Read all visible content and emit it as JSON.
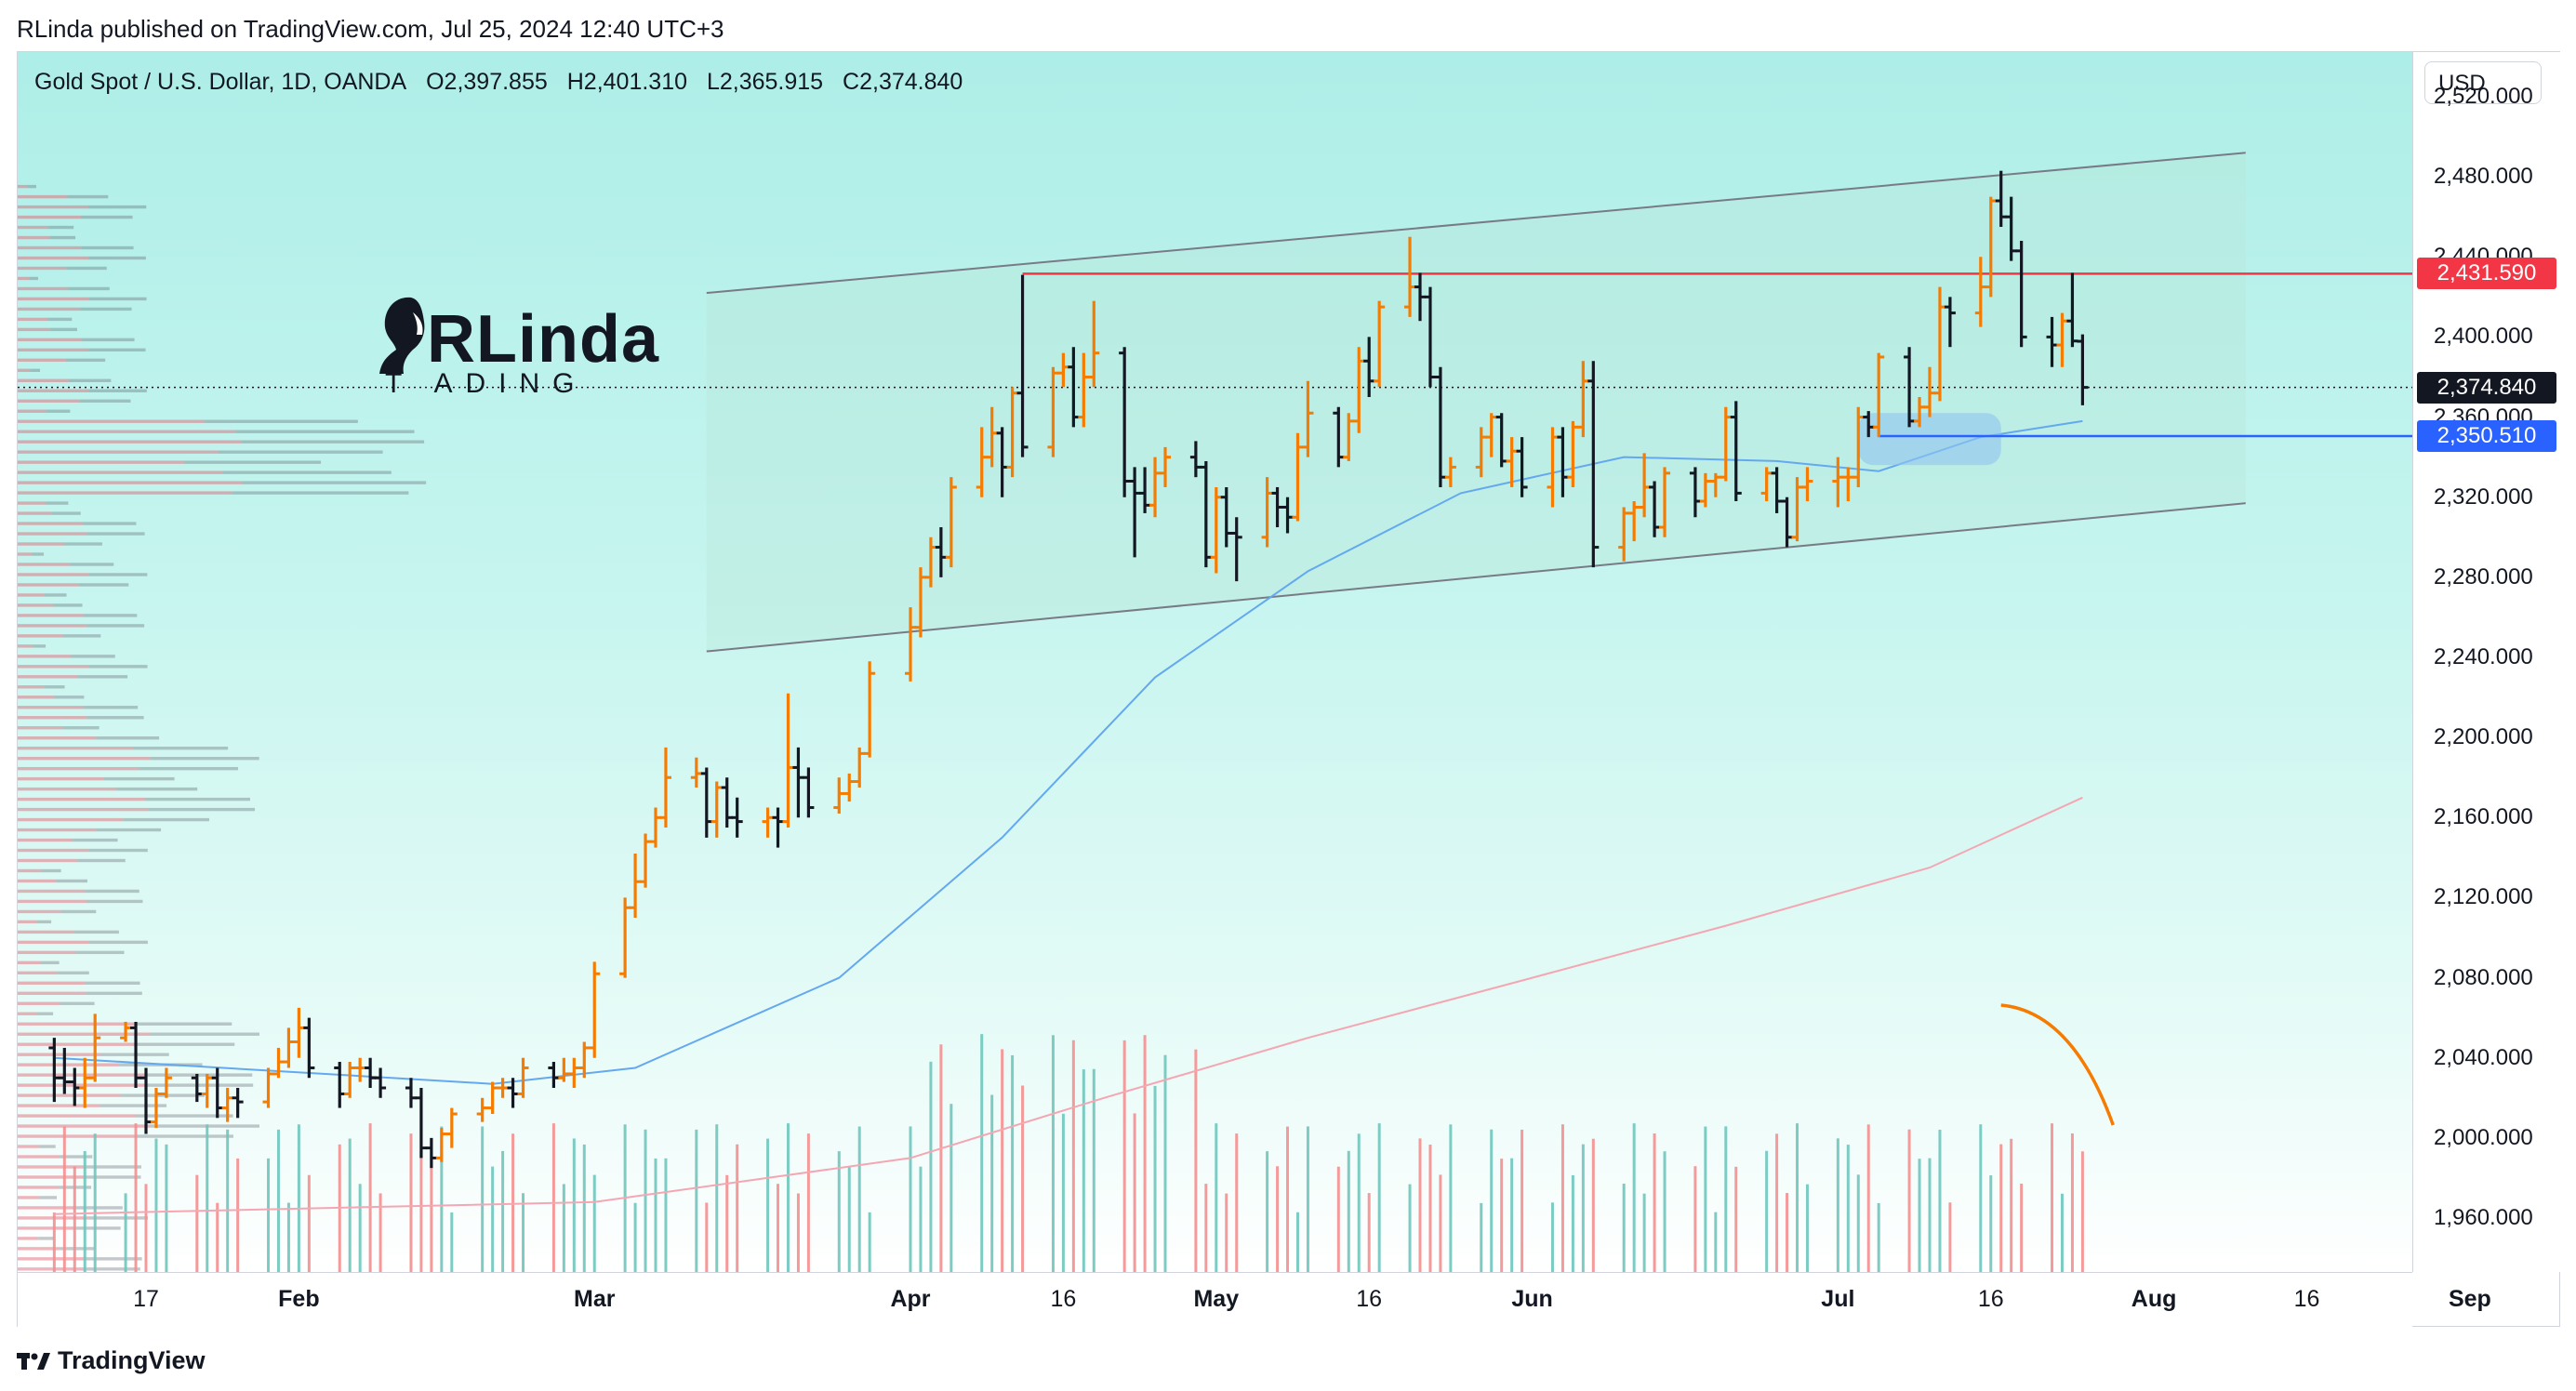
{
  "header": {
    "caption": "RLinda published on TradingView.com, Jul 25, 2024 12:40 UTC+3"
  },
  "legend": {
    "symbol": "Gold Spot / U.S. Dollar, 1D, OANDA",
    "open": "O2,397.855",
    "high": "H2,401.310",
    "low": "L2,365.915",
    "close": "C2,374.840"
  },
  "watermark": {
    "name": "RLinda",
    "sub": "TRADING",
    "sub_shown": "T  ADING"
  },
  "price_axis": {
    "currency": "USD",
    "ticks": [
      "2,520.000",
      "2,480.000",
      "2,440.000",
      "2,400.000",
      "2,360.000",
      "2,320.000",
      "2,280.000",
      "2,240.000",
      "2,200.000",
      "2,160.000",
      "2,120.000",
      "2,080.000",
      "2,040.000",
      "2,000.000",
      "1,960.000"
    ],
    "tags": [
      {
        "label": "2,431.590",
        "value": 2431.59,
        "color": "#f23645"
      },
      {
        "label": "2,374.840",
        "value": 2374.84,
        "color": "#131722"
      },
      {
        "label": "2,350.510",
        "value": 2350.51,
        "color": "#2962ff"
      }
    ]
  },
  "time_axis": {
    "ticks": [
      {
        "label": "17",
        "month": false
      },
      {
        "label": "Feb",
        "month": true
      },
      {
        "label": "Mar",
        "month": true
      },
      {
        "label": "Apr",
        "month": true
      },
      {
        "label": "16",
        "month": false
      },
      {
        "label": "May",
        "month": true
      },
      {
        "label": "16",
        "month": false
      },
      {
        "label": "Jun",
        "month": true
      },
      {
        "label": "Jul",
        "month": true
      },
      {
        "label": "16",
        "month": false
      },
      {
        "label": "Aug",
        "month": true
      },
      {
        "label": "16",
        "month": false
      },
      {
        "label": "Sep",
        "month": true
      }
    ]
  },
  "footer": {
    "brand": "TradingView"
  },
  "colors": {
    "up": "#f57c00",
    "down": "#131722",
    "ma_fast": "#64a8f0",
    "ma_slow": "#f4a7b3",
    "vol_up": "#6fc7bd",
    "vol_down": "#f48f8f",
    "resistance": "#f23645",
    "support": "#2962ff"
  },
  "chart_data": {
    "type": "ohlc",
    "symbol": "XAUUSD",
    "timeframe": "1D",
    "ylim": [
      1920,
      2560
    ],
    "x_range": [
      "2024-01-08",
      "2024-09-05"
    ],
    "last_close": 2374.84,
    "levels": [
      {
        "label": "2,431.590",
        "value": 2431.59,
        "color": "red"
      },
      {
        "label": "2,350.510",
        "value": 2350.51,
        "color": "blue"
      }
    ],
    "channel": {
      "upper": [
        [
          "2024-03-12",
          2422
        ],
        [
          "2024-08-10",
          2492
        ]
      ],
      "lower": [
        [
          "2024-03-12",
          2243
        ],
        [
          "2024-08-10",
          2317
        ]
      ]
    },
    "ma_fast": [
      [
        "2024-01-08",
        2040
      ],
      [
        "2024-02-20",
        2027
      ],
      [
        "2024-03-05",
        2035
      ],
      [
        "2024-03-25",
        2080
      ],
      [
        "2024-04-10",
        2150
      ],
      [
        "2024-04-25",
        2230
      ],
      [
        "2024-05-10",
        2283
      ],
      [
        "2024-05-25",
        2322
      ],
      [
        "2024-06-10",
        2340
      ],
      [
        "2024-06-25",
        2338
      ],
      [
        "2024-07-05",
        2333
      ],
      [
        "2024-07-15",
        2350
      ],
      [
        "2024-07-25",
        2358
      ]
    ],
    "ma_slow": [
      [
        "2024-01-08",
        1962
      ],
      [
        "2024-03-01",
        1968
      ],
      [
        "2024-04-01",
        1990
      ],
      [
        "2024-04-20",
        2020
      ],
      [
        "2024-05-10",
        2050
      ],
      [
        "2024-06-01",
        2080
      ],
      [
        "2024-06-20",
        2106
      ],
      [
        "2024-07-10",
        2135
      ],
      [
        "2024-07-25",
        2170
      ]
    ],
    "candles": [
      [
        "2024-01-08",
        2045,
        2050,
        2018,
        2030
      ],
      [
        "2024-01-09",
        2030,
        2045,
        2022,
        2028
      ],
      [
        "2024-01-10",
        2028,
        2035,
        2016,
        2025
      ],
      [
        "2024-01-11",
        2025,
        2040,
        2015,
        2030
      ],
      [
        "2024-01-12",
        2030,
        2062,
        2028,
        2050
      ],
      [
        "2024-01-15",
        2050,
        2058,
        2048,
        2055
      ],
      [
        "2024-01-16",
        2055,
        2058,
        2025,
        2030
      ],
      [
        "2024-01-17",
        2030,
        2035,
        2002,
        2008
      ],
      [
        "2024-01-18",
        2008,
        2025,
        2005,
        2022
      ],
      [
        "2024-01-19",
        2022,
        2035,
        2020,
        2030
      ],
      [
        "2024-01-22",
        2030,
        2032,
        2018,
        2022
      ],
      [
        "2024-01-23",
        2022,
        2032,
        2015,
        2030
      ],
      [
        "2024-01-24",
        2030,
        2035,
        2010,
        2015
      ],
      [
        "2024-01-25",
        2015,
        2025,
        2008,
        2020
      ],
      [
        "2024-01-26",
        2020,
        2025,
        2010,
        2018
      ],
      [
        "2024-01-29",
        2018,
        2035,
        2015,
        2032
      ],
      [
        "2024-01-30",
        2032,
        2045,
        2030,
        2038
      ],
      [
        "2024-01-31",
        2038,
        2055,
        2035,
        2048
      ],
      [
        "2024-02-01",
        2048,
        2065,
        2040,
        2055
      ],
      [
        "2024-02-02",
        2055,
        2060,
        2030,
        2035
      ],
      [
        "2024-02-05",
        2035,
        2038,
        2015,
        2022
      ],
      [
        "2024-02-06",
        2022,
        2038,
        2020,
        2035
      ],
      [
        "2024-02-07",
        2035,
        2040,
        2028,
        2035
      ],
      [
        "2024-02-08",
        2035,
        2040,
        2025,
        2030
      ],
      [
        "2024-02-09",
        2030,
        2035,
        2020,
        2025
      ],
      [
        "2024-02-12",
        2025,
        2030,
        2015,
        2020
      ],
      [
        "2024-02-13",
        2020,
        2025,
        1990,
        1995
      ],
      [
        "2024-02-14",
        1995,
        2000,
        1985,
        1990
      ],
      [
        "2024-02-15",
        1990,
        2005,
        1988,
        2002
      ],
      [
        "2024-02-16",
        2002,
        2015,
        1995,
        2012
      ],
      [
        "2024-02-19",
        2012,
        2020,
        2008,
        2015
      ],
      [
        "2024-02-20",
        2015,
        2028,
        2012,
        2025
      ],
      [
        "2024-02-21",
        2025,
        2030,
        2020,
        2025
      ],
      [
        "2024-02-22",
        2025,
        2030,
        2015,
        2022
      ],
      [
        "2024-02-23",
        2022,
        2040,
        2020,
        2035
      ],
      [
        "2024-02-26",
        2035,
        2038,
        2025,
        2030
      ],
      [
        "2024-02-27",
        2030,
        2040,
        2028,
        2032
      ],
      [
        "2024-02-28",
        2032,
        2040,
        2025,
        2035
      ],
      [
        "2024-02-29",
        2035,
        2048,
        2030,
        2045
      ],
      [
        "2024-03-01",
        2045,
        2088,
        2040,
        2082
      ],
      [
        "2024-03-04",
        2082,
        2120,
        2080,
        2115
      ],
      [
        "2024-03-05",
        2115,
        2142,
        2110,
        2128
      ],
      [
        "2024-03-06",
        2128,
        2152,
        2125,
        2148
      ],
      [
        "2024-03-07",
        2148,
        2165,
        2145,
        2160
      ],
      [
        "2024-03-08",
        2160,
        2195,
        2155,
        2180
      ],
      [
        "2024-03-11",
        2180,
        2190,
        2175,
        2182
      ],
      [
        "2024-03-12",
        2182,
        2185,
        2150,
        2158
      ],
      [
        "2024-03-13",
        2158,
        2178,
        2150,
        2175
      ],
      [
        "2024-03-14",
        2175,
        2180,
        2155,
        2160
      ],
      [
        "2024-03-15",
        2160,
        2170,
        2150,
        2158
      ],
      [
        "2024-03-18",
        2158,
        2165,
        2150,
        2160
      ],
      [
        "2024-03-19",
        2160,
        2165,
        2145,
        2158
      ],
      [
        "2024-03-20",
        2158,
        2222,
        2155,
        2185
      ],
      [
        "2024-03-21",
        2185,
        2195,
        2160,
        2180
      ],
      [
        "2024-03-22",
        2180,
        2185,
        2160,
        2165
      ],
      [
        "2024-03-25",
        2165,
        2180,
        2162,
        2172
      ],
      [
        "2024-03-26",
        2172,
        2182,
        2168,
        2178
      ],
      [
        "2024-03-27",
        2178,
        2195,
        2175,
        2192
      ],
      [
        "2024-03-28",
        2192,
        2238,
        2190,
        2232
      ],
      [
        "2024-04-01",
        2232,
        2265,
        2228,
        2255
      ],
      [
        "2024-04-02",
        2255,
        2285,
        2250,
        2280
      ],
      [
        "2024-04-03",
        2280,
        2300,
        2275,
        2295
      ],
      [
        "2024-04-04",
        2295,
        2305,
        2280,
        2290
      ],
      [
        "2024-04-05",
        2290,
        2330,
        2285,
        2325
      ],
      [
        "2024-04-08",
        2325,
        2355,
        2320,
        2340
      ],
      [
        "2024-04-09",
        2340,
        2365,
        2335,
        2352
      ],
      [
        "2024-04-10",
        2352,
        2355,
        2320,
        2335
      ],
      [
        "2024-04-11",
        2335,
        2375,
        2330,
        2372
      ],
      [
        "2024-04-12",
        2372,
        2431,
        2340,
        2345
      ],
      [
        "2024-04-15",
        2345,
        2385,
        2340,
        2382
      ],
      [
        "2024-04-16",
        2382,
        2392,
        2375,
        2385
      ],
      [
        "2024-04-17",
        2385,
        2395,
        2355,
        2360
      ],
      [
        "2024-04-18",
        2360,
        2392,
        2355,
        2380
      ],
      [
        "2024-04-19",
        2380,
        2418,
        2375,
        2392
      ],
      [
        "2024-04-22",
        2392,
        2395,
        2320,
        2328
      ],
      [
        "2024-04-23",
        2328,
        2335,
        2290,
        2322
      ],
      [
        "2024-04-24",
        2322,
        2335,
        2312,
        2316
      ],
      [
        "2024-04-25",
        2316,
        2340,
        2310,
        2332
      ],
      [
        "2024-04-26",
        2332,
        2345,
        2325,
        2340
      ],
      [
        "2024-04-29",
        2340,
        2348,
        2330,
        2335
      ],
      [
        "2024-04-30",
        2335,
        2338,
        2285,
        2290
      ],
      [
        "2024-05-01",
        2290,
        2325,
        2282,
        2320
      ],
      [
        "2024-05-02",
        2320,
        2325,
        2295,
        2302
      ],
      [
        "2024-05-03",
        2302,
        2310,
        2278,
        2300
      ],
      [
        "2024-05-06",
        2300,
        2330,
        2295,
        2322
      ],
      [
        "2024-05-07",
        2322,
        2325,
        2305,
        2315
      ],
      [
        "2024-05-08",
        2315,
        2320,
        2302,
        2310
      ],
      [
        "2024-05-09",
        2310,
        2352,
        2308,
        2345
      ],
      [
        "2024-05-10",
        2345,
        2378,
        2340,
        2362
      ],
      [
        "2024-05-13",
        2362,
        2365,
        2335,
        2340
      ],
      [
        "2024-05-14",
        2340,
        2362,
        2338,
        2358
      ],
      [
        "2024-05-15",
        2358,
        2395,
        2352,
        2388
      ],
      [
        "2024-05-16",
        2388,
        2400,
        2370,
        2378
      ],
      [
        "2024-05-17",
        2378,
        2418,
        2375,
        2415
      ],
      [
        "2024-05-20",
        2415,
        2450,
        2410,
        2425
      ],
      [
        "2024-05-21",
        2425,
        2432,
        2408,
        2420
      ],
      [
        "2024-05-22",
        2420,
        2425,
        2375,
        2380
      ],
      [
        "2024-05-23",
        2380,
        2385,
        2325,
        2330
      ],
      [
        "2024-05-24",
        2330,
        2340,
        2325,
        2335
      ],
      [
        "2024-05-27",
        2335,
        2355,
        2330,
        2350
      ],
      [
        "2024-05-28",
        2350,
        2362,
        2340,
        2360
      ],
      [
        "2024-05-29",
        2360,
        2362,
        2335,
        2338
      ],
      [
        "2024-05-30",
        2338,
        2350,
        2325,
        2343
      ],
      [
        "2024-05-31",
        2343,
        2350,
        2320,
        2325
      ],
      [
        "2024-06-03",
        2325,
        2355,
        2315,
        2350
      ],
      [
        "2024-06-04",
        2350,
        2355,
        2320,
        2330
      ],
      [
        "2024-06-05",
        2330,
        2358,
        2325,
        2355
      ],
      [
        "2024-06-06",
        2355,
        2388,
        2350,
        2378
      ],
      [
        "2024-06-07",
        2378,
        2388,
        2285,
        2295
      ],
      [
        "2024-06-10",
        2295,
        2315,
        2288,
        2312
      ],
      [
        "2024-06-11",
        2312,
        2318,
        2298,
        2315
      ],
      [
        "2024-06-12",
        2315,
        2342,
        2310,
        2325
      ],
      [
        "2024-06-13",
        2325,
        2328,
        2300,
        2305
      ],
      [
        "2024-06-14",
        2305,
        2335,
        2300,
        2332
      ],
      [
        "2024-06-17",
        2332,
        2335,
        2310,
        2318
      ],
      [
        "2024-06-18",
        2318,
        2332,
        2315,
        2328
      ],
      [
        "2024-06-19",
        2328,
        2332,
        2320,
        2330
      ],
      [
        "2024-06-20",
        2330,
        2365,
        2328,
        2360
      ],
      [
        "2024-06-21",
        2360,
        2368,
        2318,
        2322
      ],
      [
        "2024-06-24",
        2322,
        2335,
        2318,
        2332
      ],
      [
        "2024-06-25",
        2332,
        2335,
        2312,
        2318
      ],
      [
        "2024-06-26",
        2318,
        2320,
        2295,
        2300
      ],
      [
        "2024-06-27",
        2300,
        2330,
        2298,
        2325
      ],
      [
        "2024-06-28",
        2325,
        2335,
        2318,
        2328
      ],
      [
        "2024-07-01",
        2328,
        2340,
        2315,
        2330
      ],
      [
        "2024-07-02",
        2330,
        2335,
        2318,
        2330
      ],
      [
        "2024-07-03",
        2330,
        2365,
        2325,
        2360
      ],
      [
        "2024-07-04",
        2360,
        2363,
        2350,
        2355
      ],
      [
        "2024-07-05",
        2355,
        2392,
        2350,
        2390
      ],
      [
        "2024-07-08",
        2390,
        2395,
        2355,
        2358
      ],
      [
        "2024-07-09",
        2358,
        2370,
        2355,
        2365
      ],
      [
        "2024-07-10",
        2365,
        2385,
        2360,
        2372
      ],
      [
        "2024-07-11",
        2372,
        2425,
        2368,
        2415
      ],
      [
        "2024-07-12",
        2415,
        2420,
        2395,
        2412
      ],
      [
        "2024-07-15",
        2412,
        2440,
        2405,
        2425
      ],
      [
        "2024-07-16",
        2425,
        2470,
        2420,
        2468
      ],
      [
        "2024-07-17",
        2468,
        2483,
        2455,
        2460
      ],
      [
        "2024-07-18",
        2460,
        2470,
        2438,
        2443
      ],
      [
        "2024-07-19",
        2443,
        2448,
        2395,
        2400
      ],
      [
        "2024-07-22",
        2400,
        2410,
        2385,
        2396
      ],
      [
        "2024-07-23",
        2396,
        2412,
        2385,
        2408
      ],
      [
        "2024-07-24",
        2408,
        2432,
        2395,
        2398
      ],
      [
        "2024-07-25",
        2397.855,
        2401.31,
        2365.915,
        2374.84
      ]
    ],
    "volume_profile": "horizontal volume-by-price histogram on left edge (values not labeled)"
  }
}
